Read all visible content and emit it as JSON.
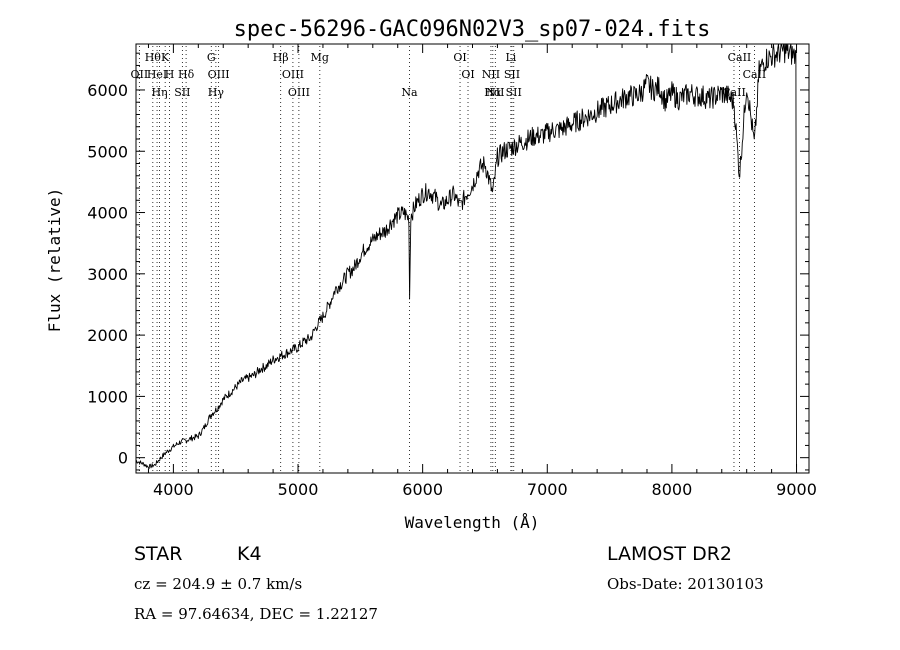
{
  "chart_data": {
    "type": "line",
    "title": "spec-56296-GAC096N02V3_sp07-024.fits",
    "xlabel": "Wavelength (Å)",
    "ylabel": "Flux (relative)",
    "xlim": [
      3700,
      9100
    ],
    "ylim": [
      -250,
      6750
    ],
    "x_ticks": [
      "4000",
      "5000",
      "6000",
      "7000",
      "8000",
      "9000"
    ],
    "x_tick_values": [
      4000,
      5000,
      6000,
      7000,
      8000,
      9000
    ],
    "y_ticks": [
      "0",
      "1000",
      "2000",
      "3000",
      "4000",
      "5000",
      "6000"
    ],
    "y_tick_values": [
      0,
      1000,
      2000,
      3000,
      4000,
      5000,
      6000
    ],
    "grid": false,
    "series": [
      {
        "x": [
          3700,
          3760,
          3800,
          3850,
          3900,
          3950,
          4000,
          4050,
          4100,
          4150,
          4200,
          4250,
          4300,
          4350,
          4400,
          4450,
          4500,
          4550,
          4600,
          4650,
          4700,
          4750,
          4800,
          4850,
          4900,
          4950,
          5000,
          5050,
          5100,
          5150,
          5200,
          5250,
          5300,
          5350,
          5400,
          5450,
          5500,
          5550,
          5600,
          5650,
          5700,
          5750,
          5800,
          5850,
          5890,
          5895,
          5905,
          5950,
          6000,
          6050,
          6100,
          6150,
          6200,
          6250,
          6300,
          6350,
          6400,
          6450,
          6500,
          6562,
          6600,
          6650,
          6700,
          6750,
          6800,
          6850,
          6900,
          6950,
          7000,
          7050,
          7100,
          7150,
          7200,
          7250,
          7300,
          7350,
          7400,
          7450,
          7500,
          7550,
          7600,
          7650,
          7700,
          7750,
          7800,
          7850,
          7900,
          7950,
          8000,
          8050,
          8100,
          8150,
          8200,
          8250,
          8300,
          8350,
          8400,
          8450,
          8498,
          8542,
          8600,
          8662,
          8700,
          8750,
          8800,
          8850,
          8900,
          8950,
          9000
        ],
        "y": [
          -50,
          -100,
          -150,
          -120,
          0,
          100,
          180,
          250,
          280,
          320,
          350,
          500,
          700,
          800,
          950,
          1050,
          1150,
          1250,
          1300,
          1350,
          1450,
          1500,
          1600,
          1650,
          1700,
          1750,
          1800,
          1900,
          1950,
          2150,
          2300,
          2500,
          2750,
          2850,
          3000,
          3100,
          3300,
          3450,
          3550,
          3650,
          3700,
          3850,
          3950,
          4000,
          3900,
          2600,
          3950,
          4150,
          4300,
          4350,
          4250,
          4100,
          4200,
          4300,
          4100,
          4300,
          4450,
          4700,
          4800,
          4300,
          4900,
          5000,
          5050,
          5100,
          5150,
          5200,
          5250,
          5250,
          5300,
          5350,
          5350,
          5400,
          5450,
          5500,
          5550,
          5600,
          5650,
          5700,
          5750,
          5800,
          5850,
          5900,
          5900,
          5950,
          6100,
          6000,
          6050,
          5800,
          5950,
          5850,
          5900,
          5950,
          5900,
          5900,
          5850,
          5900,
          5950,
          5900,
          5800,
          4600,
          6100,
          5100,
          6300,
          6500,
          6550,
          6600,
          6650,
          6600,
          6550
        ]
      }
    ],
    "line_markers": [
      {
        "x": 3727,
        "labels": [
          "OII"
        ],
        "rows": [
          1
        ]
      },
      {
        "x": 3835,
        "labels": [
          "Hθ"
        ],
        "rows": [
          0
        ]
      },
      {
        "x": 3869,
        "labels": [
          "HeI"
        ],
        "rows": [
          1
        ]
      },
      {
        "x": 3889,
        "labels": [
          "Hη"
        ],
        "rows": [
          2
        ]
      },
      {
        "x": 3934,
        "labels": [
          "K"
        ],
        "rows": [
          0
        ]
      },
      {
        "x": 3969,
        "labels": [
          "H"
        ],
        "rows": [
          1
        ]
      },
      {
        "x": 4072,
        "labels": [
          "SII"
        ],
        "rows": [
          2
        ]
      },
      {
        "x": 4102,
        "labels": [
          "Hδ"
        ],
        "rows": [
          1
        ]
      },
      {
        "x": 4304,
        "labels": [
          "G"
        ],
        "rows": [
          0
        ]
      },
      {
        "x": 4341,
        "labels": [
          "Hγ"
        ],
        "rows": [
          2
        ]
      },
      {
        "x": 4363,
        "labels": [
          "OIII"
        ],
        "rows": [
          1
        ]
      },
      {
        "x": 4861,
        "labels": [
          "Hβ"
        ],
        "rows": [
          0
        ]
      },
      {
        "x": 4959,
        "labels": [
          "OIII"
        ],
        "rows": [
          1
        ]
      },
      {
        "x": 5007,
        "labels": [
          "OIII"
        ],
        "rows": [
          2
        ]
      },
      {
        "x": 5175,
        "labels": [
          "Mg"
        ],
        "rows": [
          0
        ]
      },
      {
        "x": 5894,
        "labels": [
          "Na"
        ],
        "rows": [
          2
        ]
      },
      {
        "x": 6300,
        "labels": [
          "OI"
        ],
        "rows": [
          0
        ]
      },
      {
        "x": 6364,
        "labels": [
          "OI"
        ],
        "rows": [
          1
        ]
      },
      {
        "x": 6548,
        "labels": [
          "NII"
        ],
        "rows": [
          1
        ]
      },
      {
        "x": 6563,
        "labels": [
          "Hα"
        ],
        "rows": [
          2
        ]
      },
      {
        "x": 6583,
        "labels": [
          "NII"
        ],
        "rows": [
          2
        ]
      },
      {
        "x": 6708,
        "labels": [
          "Li"
        ],
        "rows": [
          0
        ]
      },
      {
        "x": 6717,
        "labels": [
          "SII"
        ],
        "rows": [
          1
        ]
      },
      {
        "x": 6731,
        "labels": [
          "SII"
        ],
        "rows": [
          2
        ]
      },
      {
        "x": 8498,
        "labels": [
          "CaII"
        ],
        "rows": [
          2
        ]
      },
      {
        "x": 8542,
        "labels": [
          "CaII"
        ],
        "rows": [
          0
        ]
      },
      {
        "x": 8662,
        "labels": [
          "CaII"
        ],
        "rows": [
          1
        ]
      }
    ]
  },
  "info": {
    "class_label": "STAR",
    "subclass": "K4",
    "survey": "LAMOST DR2",
    "redshift": "cz = 204.9 ± 0.7 km/s",
    "obs_date": "Obs-Date: 20130103",
    "coords": "RA =  97.64634, DEC =   1.22127"
  }
}
